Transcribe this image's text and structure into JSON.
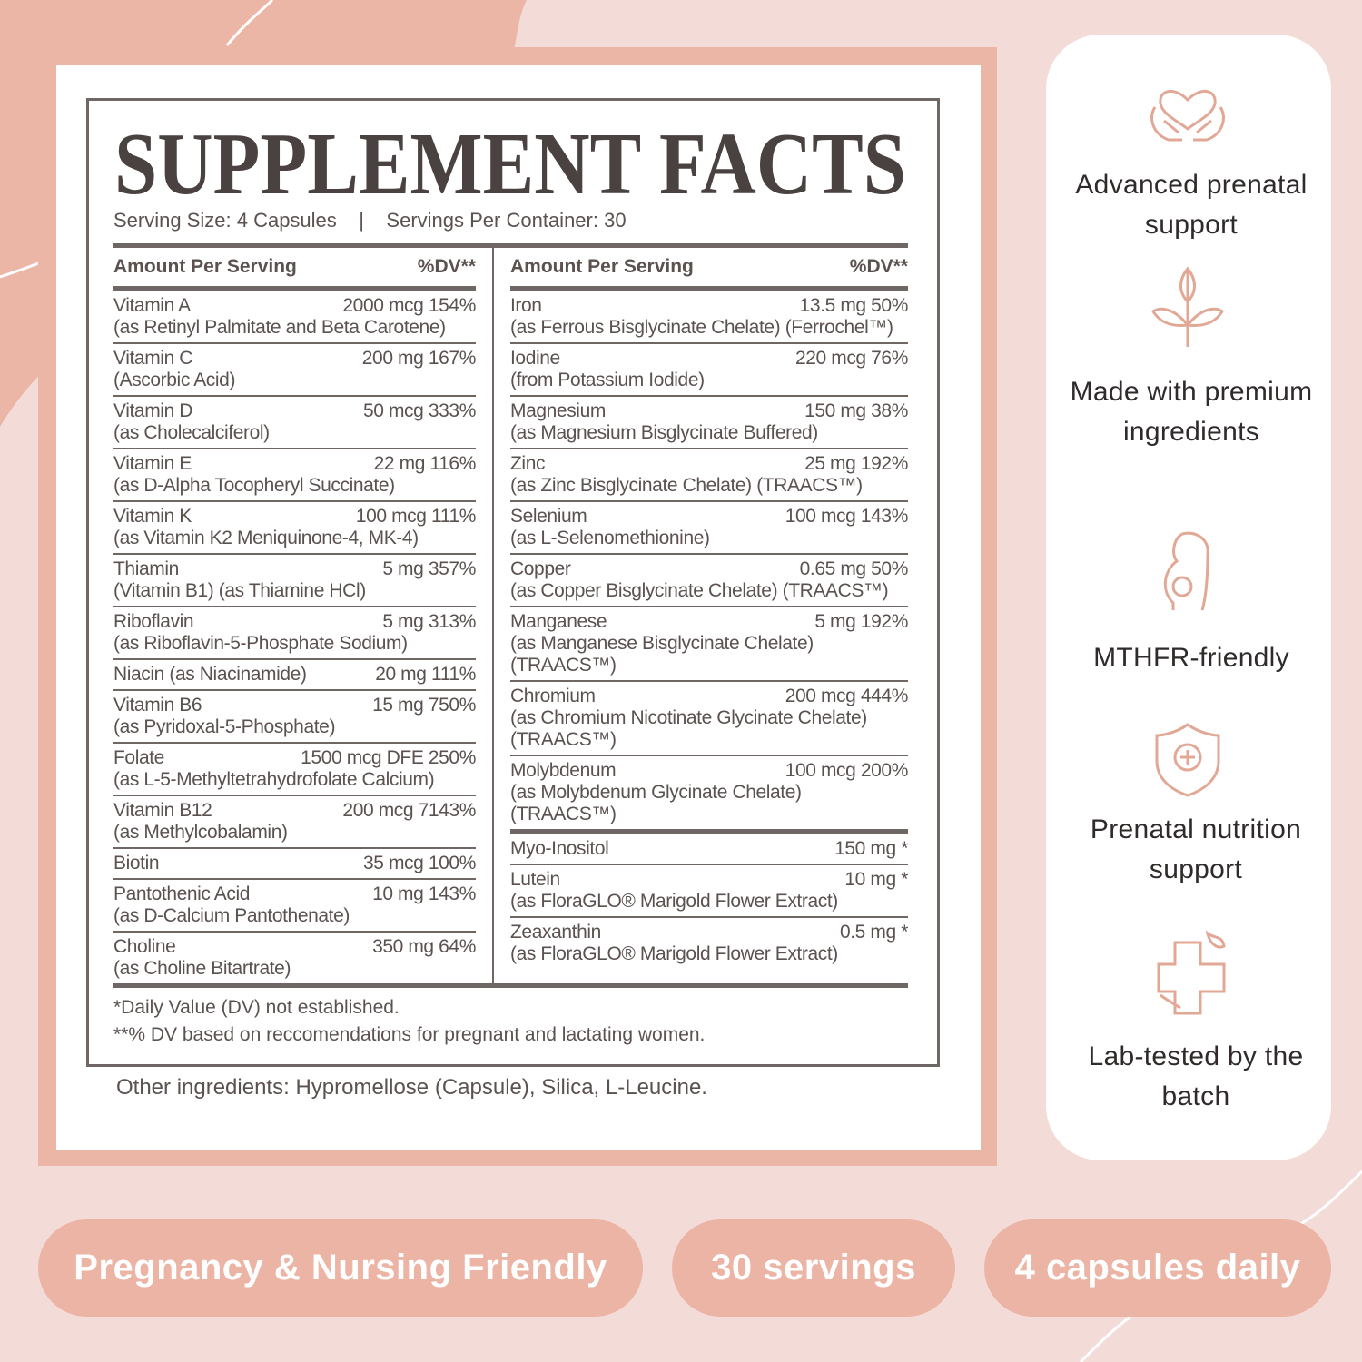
{
  "facts": {
    "title": "SUPPLEMENT FACTS",
    "serving_size": "Serving Size: 4 Capsules",
    "separator": "|",
    "servings_per_container": "Servings Per Container: 30",
    "columns": [
      {
        "header": {
          "amount": "Amount Per Serving",
          "dv": "%DV**"
        },
        "rows": [
          {
            "name": "Vitamin A",
            "amount": "2000 mcg",
            "dv": "154%",
            "detail": [
              "(as Retinyl Palmitate and Beta Carotene)"
            ]
          },
          {
            "name": "Vitamin C",
            "amount": "200 mg",
            "dv": "167%",
            "detail": [
              "(Ascorbic Acid)"
            ]
          },
          {
            "name": "Vitamin D",
            "amount": "50 mcg",
            "dv": "333%",
            "detail": [
              "(as Cholecalciferol)"
            ]
          },
          {
            "name": "Vitamin E",
            "amount": "22 mg",
            "dv": "116%",
            "detail": [
              "(as D-Alpha Tocopheryl Succinate)"
            ]
          },
          {
            "name": "Vitamin K",
            "amount": "100 mcg",
            "dv": "111%",
            "detail": [
              "(as Vitamin K2 Meniquinone-4, MK-4)"
            ]
          },
          {
            "name": "Thiamin",
            "amount": "5 mg",
            "dv": "357%",
            "detail": [
              "(Vitamin B1) (as Thiamine HCl)"
            ]
          },
          {
            "name": "Riboflavin",
            "amount": "5 mg",
            "dv": "313%",
            "detail": [
              "(as Riboflavin-5-Phosphate Sodium)"
            ]
          },
          {
            "name": "Niacin (as Niacinamide)",
            "amount": "20 mg",
            "dv": "111%"
          },
          {
            "name": "Vitamin B6",
            "amount": "15 mg",
            "dv": "750%",
            "detail": [
              "(as Pyridoxal-5-Phosphate)"
            ]
          },
          {
            "name": "Folate",
            "amount": "1500 mcg DFE",
            "dv": "250%",
            "detail": [
              "(as L-5-Methyltetrahydrofolate Calcium)"
            ]
          },
          {
            "name": "Vitamin B12",
            "amount": "200 mcg",
            "dv": "7143%",
            "detail": [
              "(as Methylcobalamin)"
            ]
          },
          {
            "name": "Biotin",
            "amount": "35 mcg",
            "dv": "100%"
          },
          {
            "name": "Pantothenic Acid",
            "amount": "10 mg",
            "dv": "143%",
            "detail": [
              "(as D-Calcium Pantothenate)"
            ]
          },
          {
            "name": "Choline",
            "amount": "350 mg",
            "dv": "64%",
            "detail": [
              "(as Choline Bitartrate)"
            ]
          }
        ]
      },
      {
        "header": {
          "amount": "Amount Per Serving",
          "dv": "%DV**"
        },
        "rows": [
          {
            "name": "Iron",
            "amount": "13.5 mg",
            "dv": "50%",
            "detail": [
              "(as Ferrous Bisglycinate Chelate) (Ferrochel™)"
            ]
          },
          {
            "name": "Iodine",
            "amount": "220 mcg",
            "dv": "76%",
            "detail": [
              "(from Potassium Iodide)"
            ]
          },
          {
            "name": "Magnesium",
            "amount": "150 mg",
            "dv": "38%",
            "detail": [
              "(as Magnesium Bisglycinate Buffered)"
            ]
          },
          {
            "name": "Zinc",
            "amount": "25 mg",
            "dv": "192%",
            "detail": [
              "(as Zinc Bisglycinate Chelate) (TRAACS™)"
            ]
          },
          {
            "name": "Selenium",
            "amount": "100 mcg",
            "dv": "143%",
            "detail": [
              "(as L-Selenomethionine)"
            ]
          },
          {
            "name": "Copper",
            "amount": "0.65 mg",
            "dv": "50%",
            "detail": [
              "(as Copper Bisglycinate Chelate) (TRAACS™)"
            ]
          },
          {
            "name": "Manganese",
            "amount": "5 mg",
            "dv": "192%",
            "detail": [
              "(as Manganese Bisglycinate Chelate)",
              "(TRAACS™)"
            ]
          },
          {
            "name": "Chromium",
            "amount": "200 mcg",
            "dv": "444%",
            "detail": [
              "(as Chromium Nicotinate Glycinate Chelate)",
              "(TRAACS™)"
            ]
          },
          {
            "name": "Molybdenum",
            "amount": "100 mcg",
            "dv": "200%",
            "detail": [
              "(as Molybdenum Glycinate Chelate)",
              "(TRAACS™)"
            ]
          }
        ],
        "other_rows": [
          {
            "name": "Myo-Inositol",
            "amount": "150 mg",
            "dv": "*"
          },
          {
            "name": "Lutein",
            "amount": "10 mg",
            "dv": "*",
            "detail": [
              "(as FloraGLO® Marigold Flower Extract)"
            ]
          },
          {
            "name": "Zeaxanthin",
            "amount": "0.5 mg",
            "dv": "*",
            "detail": [
              "(as FloraGLO® Marigold Flower Extract)"
            ]
          }
        ]
      }
    ],
    "footnotes": [
      "*Daily Value (DV) not established.",
      "**% DV based on reccomendations for pregnant and lactating women."
    ]
  },
  "other_ingredients": "Other ingredients: Hypromellose (Capsule), Silica, L-Leucine.",
  "features": [
    "Advanced prenatal support",
    "Made with premium ingredients",
    "MTHFR-friendly",
    "Prenatal nutrition support",
    "Lab-tested by the batch"
  ],
  "badges": [
    "Pregnancy & Nursing Friendly",
    "30 servings",
    "4 capsules daily"
  ]
}
